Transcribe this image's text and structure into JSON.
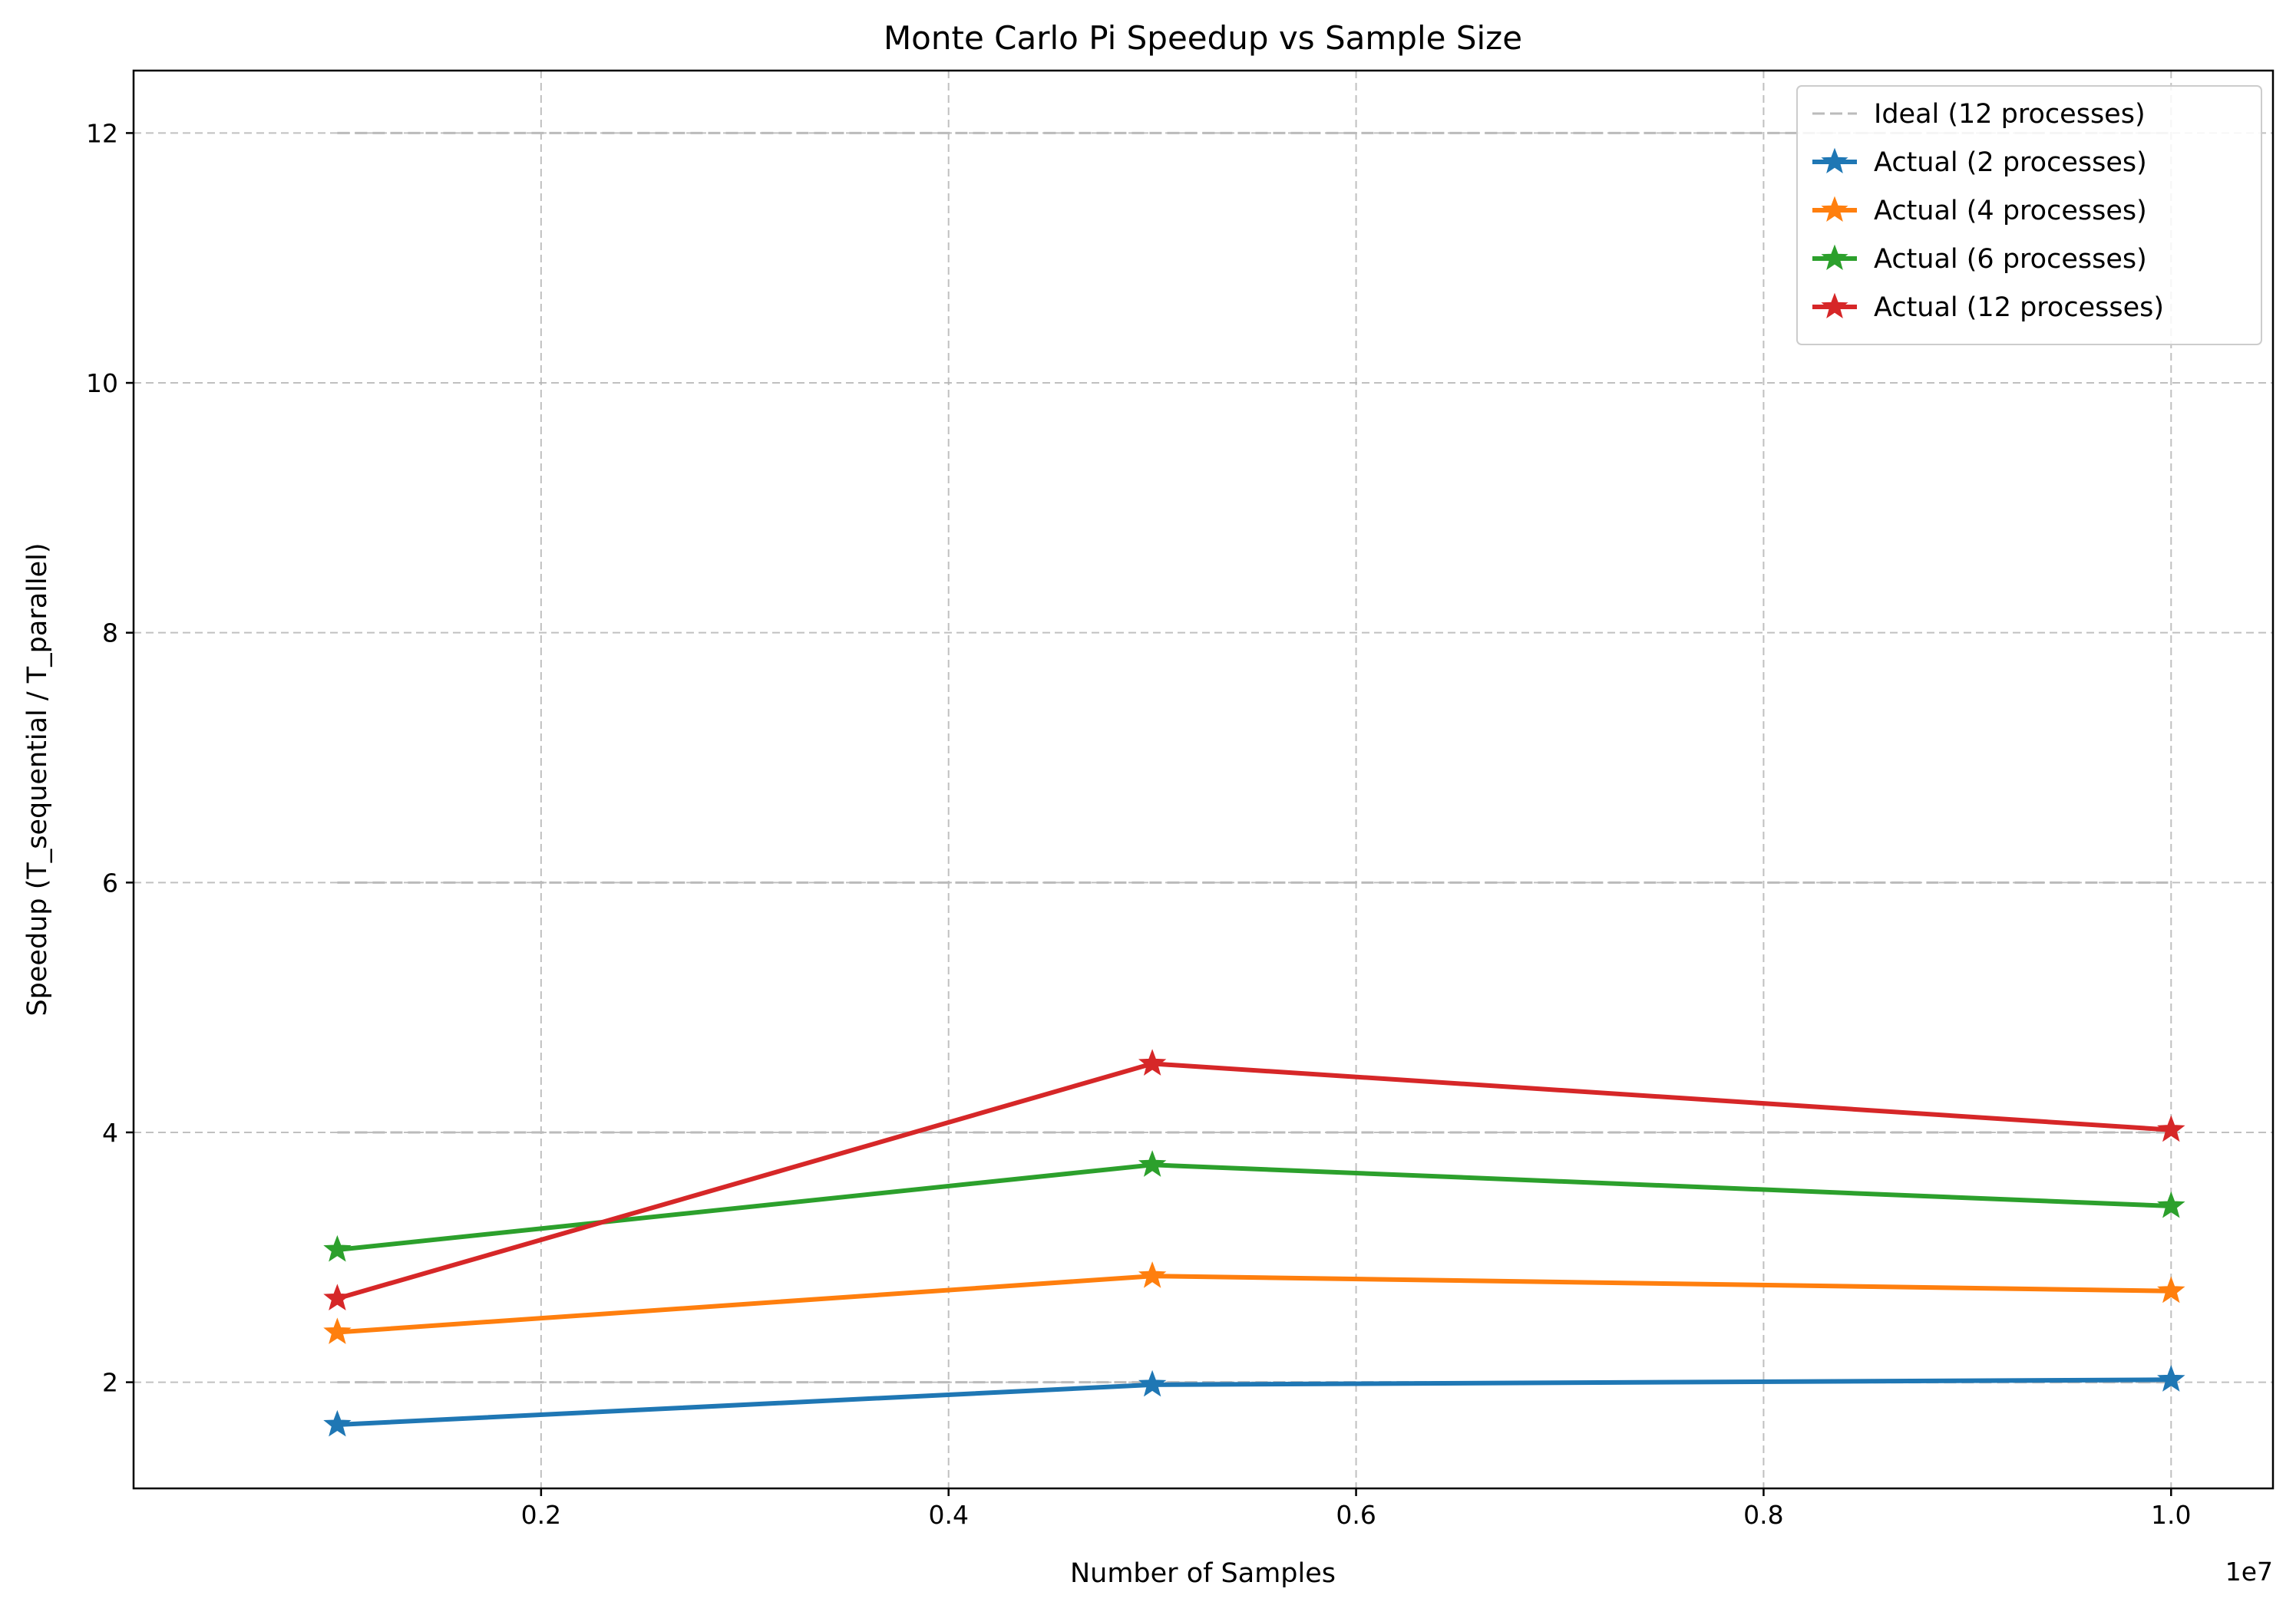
{
  "chart_data": {
    "type": "line",
    "title": "Monte Carlo Pi Speedup vs Sample Size",
    "xlabel": "Number of Samples",
    "ylabel": "Speedup (T_sequential / T_parallel)",
    "x_offset_label": "1e7",
    "xlim": [
      0,
      10500000
    ],
    "ylim": [
      1.15,
      12.5
    ],
    "x_ticks": [
      2000000,
      4000000,
      6000000,
      8000000,
      10000000
    ],
    "x_tick_labels": [
      "0.2",
      "0.4",
      "0.6",
      "0.8",
      "1.0"
    ],
    "y_ticks": [
      2,
      4,
      6,
      8,
      10,
      12
    ],
    "y_tick_labels": [
      "2",
      "4",
      "6",
      "8",
      "10",
      "12"
    ],
    "grid": true,
    "legend_position": "top-right",
    "x": [
      1000000,
      5000000,
      10000000
    ],
    "ideal_lines": {
      "legend_label": "Ideal (12 processes)",
      "color": "#bbbbbb",
      "values": [
        2,
        4,
        6,
        12
      ]
    },
    "series": [
      {
        "name": "Actual (2 processes)",
        "color": "#1f77b4",
        "values": [
          1.66,
          1.98,
          2.02
        ]
      },
      {
        "name": "Actual (4 processes)",
        "color": "#ff7f0e",
        "values": [
          2.4,
          2.85,
          2.73
        ]
      },
      {
        "name": "Actual (6 processes)",
        "color": "#2ca02c",
        "values": [
          3.06,
          3.74,
          3.41
        ]
      },
      {
        "name": "Actual (12 processes)",
        "color": "#d62728",
        "values": [
          2.67,
          4.55,
          4.02
        ]
      }
    ]
  }
}
